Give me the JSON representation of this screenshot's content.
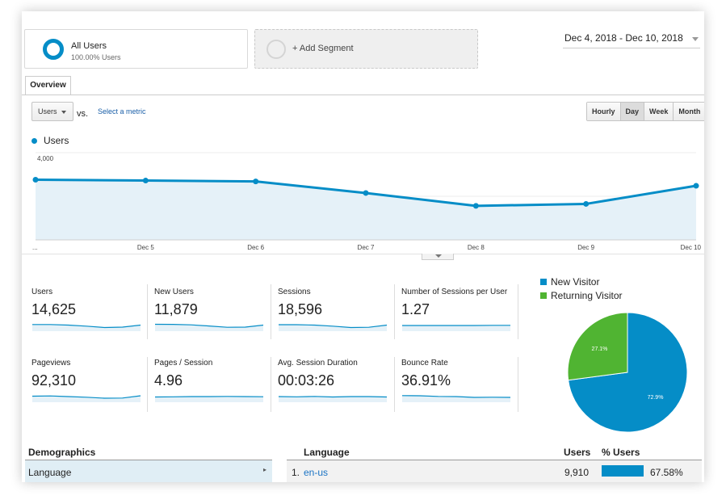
{
  "segments": {
    "active": {
      "title": "All Users",
      "subtitle": "100.00% Users"
    },
    "add_label": "+ Add Segment"
  },
  "date_range": "Dec 4, 2018 - Dec 10, 2018",
  "tabs": [
    {
      "label": "Overview",
      "active": true
    }
  ],
  "controls": {
    "metric_select": "Users",
    "vs_label": "vs.",
    "select_metric_link": "Select a metric",
    "granularity": [
      {
        "label": "Hourly",
        "active": false
      },
      {
        "label": "Day",
        "active": true
      },
      {
        "label": "Week",
        "active": false
      },
      {
        "label": "Month",
        "active": false
      }
    ]
  },
  "chart_data": {
    "type": "area",
    "series": [
      {
        "name": "Users",
        "values": [
          2760,
          2720,
          2680,
          2150,
          1560,
          1650,
          2480
        ]
      }
    ],
    "categories": [
      "...",
      "Dec 5",
      "Dec 6",
      "Dec 7",
      "Dec 8",
      "Dec 9",
      "Dec 10"
    ],
    "yticks": [
      "4,000",
      "2,000"
    ],
    "ylim": [
      0,
      4000
    ],
    "grid": true,
    "color": "#058dc7",
    "fill_color": "#e5f1f8"
  },
  "metrics": [
    {
      "label": "Users",
      "value": "14,625",
      "spark": [
        0.62,
        0.62,
        0.55,
        0.42,
        0.25,
        0.3,
        0.55
      ]
    },
    {
      "label": "New Users",
      "value": "11,879",
      "spark": [
        0.65,
        0.64,
        0.58,
        0.44,
        0.28,
        0.3,
        0.55
      ]
    },
    {
      "label": "Sessions",
      "value": "18,596",
      "spark": [
        0.6,
        0.6,
        0.55,
        0.42,
        0.25,
        0.28,
        0.55
      ]
    },
    {
      "label": "Number of Sessions per User",
      "value": "1.27",
      "spark": [
        0.5,
        0.5,
        0.5,
        0.5,
        0.5,
        0.52,
        0.52
      ]
    },
    {
      "label": "Pageviews",
      "value": "92,310",
      "spark": [
        0.55,
        0.58,
        0.5,
        0.42,
        0.3,
        0.32,
        0.6
      ]
    },
    {
      "label": "Pages / Session",
      "value": "4.96",
      "spark": [
        0.45,
        0.47,
        0.5,
        0.5,
        0.52,
        0.5,
        0.48
      ]
    },
    {
      "label": "Avg. Session Duration",
      "value": "00:03:26",
      "spark": [
        0.5,
        0.47,
        0.52,
        0.45,
        0.5,
        0.5,
        0.45
      ]
    },
    {
      "label": "Bounce Rate",
      "value": "36.91%",
      "spark": [
        0.62,
        0.6,
        0.52,
        0.5,
        0.4,
        0.42,
        0.4
      ]
    }
  ],
  "pie": {
    "slices": [
      {
        "name": "New Visitor",
        "value": 72.9,
        "label": "72.9%",
        "color": "#058dc7"
      },
      {
        "name": "Returning Visitor",
        "value": 27.1,
        "label": "27.1%",
        "color": "#50b432"
      }
    ]
  },
  "demographics": {
    "title": "Demographics",
    "items": [
      {
        "label": "Language",
        "selected": true
      }
    ]
  },
  "language_table": {
    "headers": {
      "name": "Language",
      "users": "Users",
      "pct": "% Users"
    },
    "rows": [
      {
        "index": "1.",
        "name": "en-us",
        "users": "9,910",
        "pct": "67.58%",
        "pct_value": 67.58
      }
    ]
  }
}
